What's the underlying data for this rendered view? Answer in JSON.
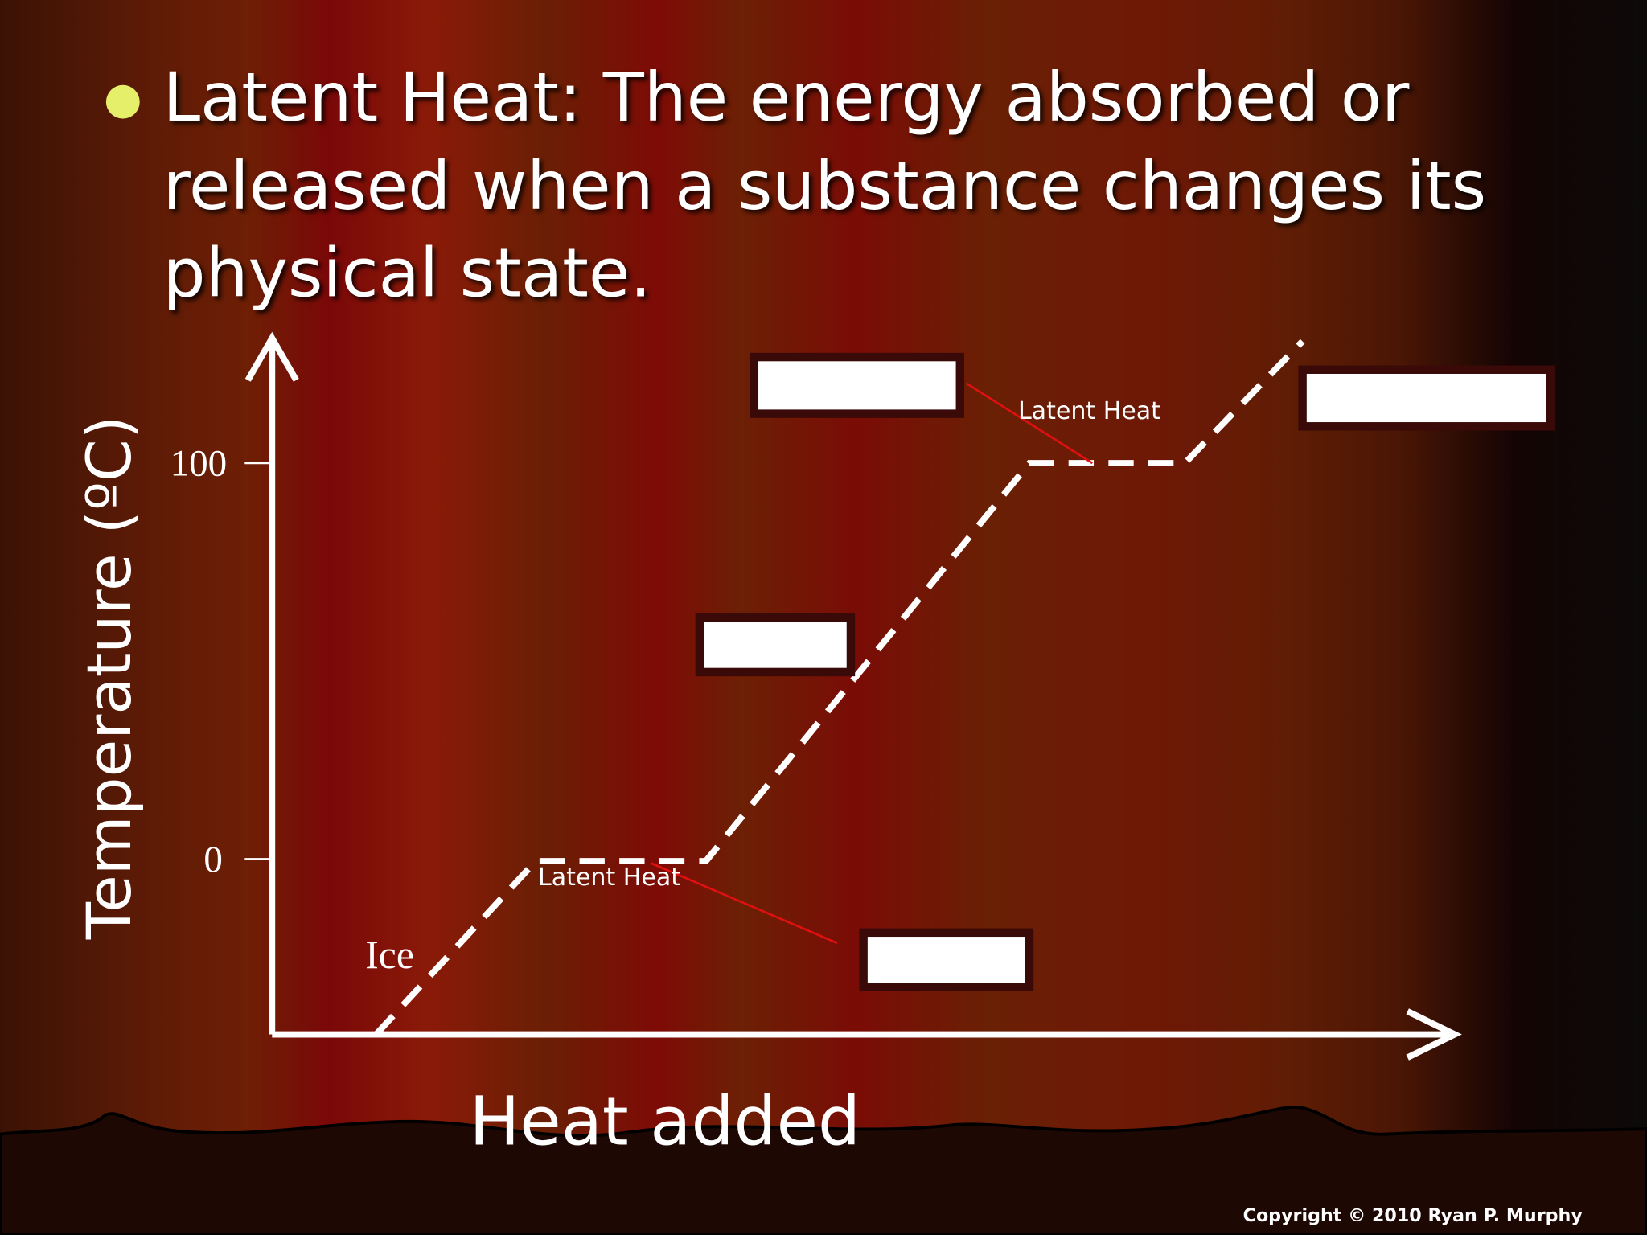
{
  "slide": {
    "bullet_lines": [
      "Latent Heat: The energy absorbed or",
      "released when a substance changes its",
      "physical state."
    ],
    "graph": {
      "y_axis_label": "Temperature (ºC)",
      "x_axis_label": "Heat added",
      "tick_labels": [
        "100",
        "0"
      ],
      "ice_label": "Ice",
      "latent_heat_labels": [
        "Latent Heat",
        "Latent Heat"
      ]
    },
    "copyright": "Copyright © 2010 Ryan P. Murphy"
  }
}
